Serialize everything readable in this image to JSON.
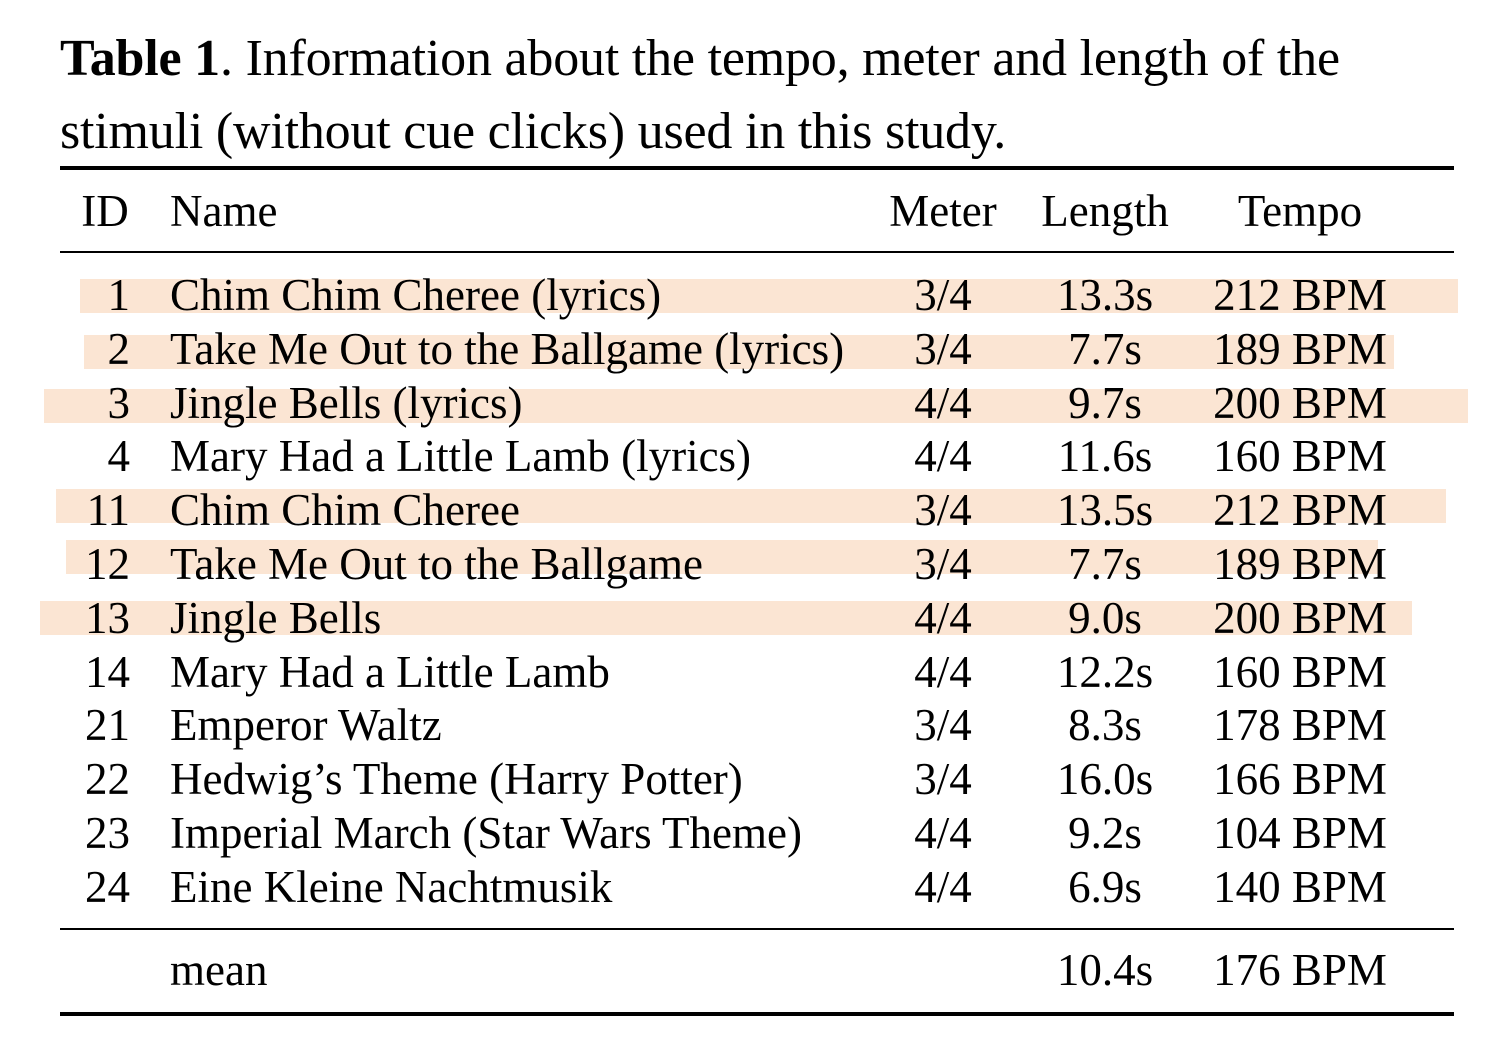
{
  "caption": {
    "label": "Table 1",
    "text": ". Information about the tempo, meter and length of the stimuli (without cue clicks) used in this study."
  },
  "table": {
    "headers": {
      "id": "ID",
      "name": "Name",
      "meter": "Meter",
      "length": "Length",
      "tempo": "Tempo"
    },
    "rows": [
      {
        "id": "1",
        "name": "Chim Chim Cheree (lyrics)",
        "meter": "3/4",
        "length": "13.3s",
        "tempo": "212 BPM",
        "highlighted": true
      },
      {
        "id": "2",
        "name": "Take Me Out to the Ballgame (lyrics)",
        "meter": "3/4",
        "length": "7.7s",
        "tempo": "189 BPM",
        "highlighted": true
      },
      {
        "id": "3",
        "name": "Jingle Bells (lyrics)",
        "meter": "4/4",
        "length": "9.7s",
        "tempo": "200 BPM",
        "highlighted": true
      },
      {
        "id": "4",
        "name": "Mary Had a Little Lamb (lyrics)",
        "meter": "4/4",
        "length": "11.6s",
        "tempo": "160 BPM",
        "highlighted": false
      },
      {
        "id": "11",
        "name": "Chim Chim Cheree",
        "meter": "3/4",
        "length": "13.5s",
        "tempo": "212 BPM",
        "highlighted": true
      },
      {
        "id": "12",
        "name": "Take Me Out to the Ballgame",
        "meter": "3/4",
        "length": "7.7s",
        "tempo": "189 BPM",
        "highlighted": true
      },
      {
        "id": "13",
        "name": "Jingle Bells",
        "meter": "4/4",
        "length": "9.0s",
        "tempo": "200 BPM",
        "highlighted": true
      },
      {
        "id": "14",
        "name": "Mary Had a Little Lamb",
        "meter": "4/4",
        "length": "12.2s",
        "tempo": "160 BPM",
        "highlighted": false
      },
      {
        "id": "21",
        "name": "Emperor Waltz",
        "meter": "3/4",
        "length": "8.3s",
        "tempo": "178 BPM",
        "highlighted": false
      },
      {
        "id": "22",
        "name": "Hedwig’s Theme (Harry Potter)",
        "meter": "3/4",
        "length": "16.0s",
        "tempo": "166 BPM",
        "highlighted": false
      },
      {
        "id": "23",
        "name": "Imperial March (Star Wars Theme)",
        "meter": "4/4",
        "length": "9.2s",
        "tempo": "104 BPM",
        "highlighted": false
      },
      {
        "id": "24",
        "name": "Eine Kleine Nachtmusik",
        "meter": "4/4",
        "length": "6.9s",
        "tempo": "140 BPM",
        "highlighted": false
      }
    ],
    "summary": {
      "name": "mean",
      "length": "10.4s",
      "tempo": "176 BPM"
    }
  },
  "colors": {
    "highlight": "#fbe5d3",
    "text": "#000000"
  }
}
